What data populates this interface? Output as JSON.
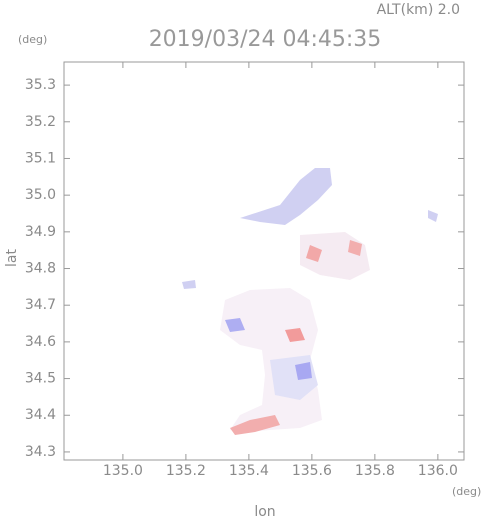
{
  "chart_data": {
    "type": "map",
    "title": "2019/03/24 04:45:35",
    "annotation": "ALT(km) 2.0",
    "x_label": "lon",
    "y_label": "lat",
    "x_unit": "(deg)",
    "y_unit": "(deg)",
    "xlim": [
      134.813,
      136.083
    ],
    "ylim": [
      34.278,
      35.363
    ],
    "xticks": [
      {
        "value": 135,
        "label": "135.0"
      },
      135.2,
      135.4,
      135.6,
      135.8,
      {
        "value": 136,
        "label": "136.0"
      }
    ],
    "yticks": [
      35.3,
      35.2,
      35.1,
      {
        "value": 35,
        "label": "35.0"
      },
      34.9,
      34.8,
      34.7,
      34.6,
      34.5,
      34.4,
      34.3
    ]
  }
}
